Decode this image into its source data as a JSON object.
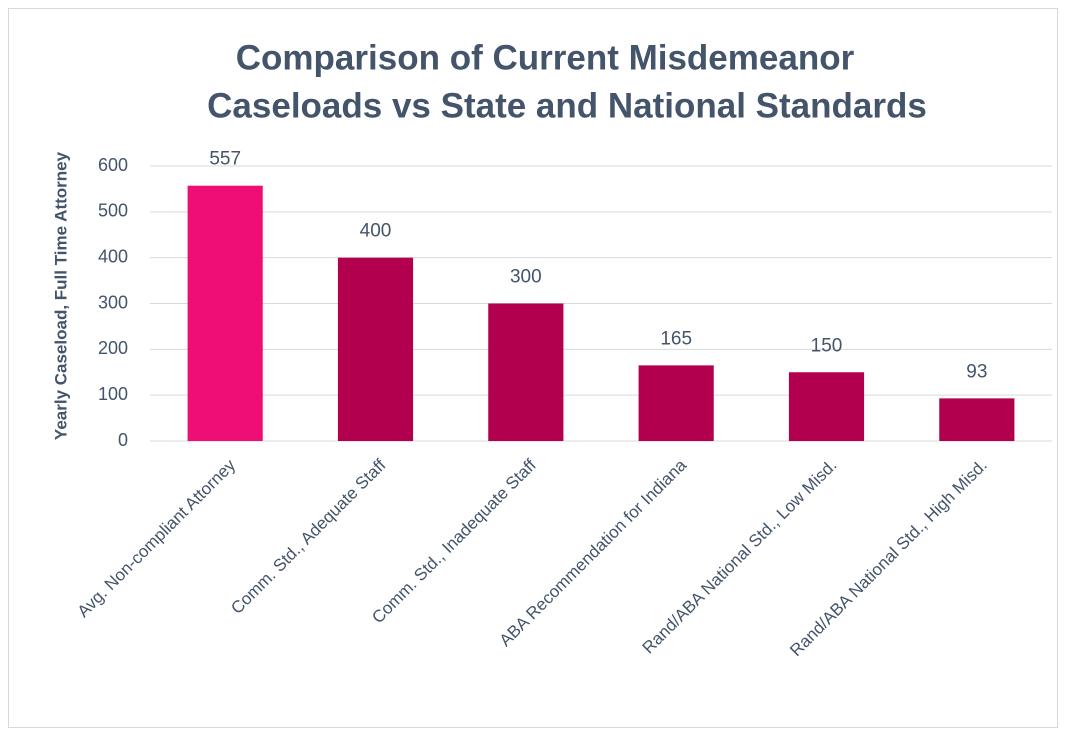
{
  "chart_data": {
    "type": "bar",
    "title": [
      "Comparison of Current Misdemeanor",
      "Caseloads vs State and National Standards"
    ],
    "y_label": "Yearly Caseload, Full Time Attorney",
    "categories": [
      "Avg. Non-compliant Attorney",
      "Comm. Std., Adequate Staff",
      "Comm. Std., Inadequate Staff",
      "ABA Recommendation for Indiana",
      "Rand/ABA National Std., Low Misd.",
      "Rand/ABA National Std., High Misd."
    ],
    "values": [
      557,
      400,
      300,
      165,
      150,
      93
    ],
    "colors": [
      "#ed0f73",
      "#b3004e",
      "#b3004e",
      "#b3004e",
      "#b3004e",
      "#b3004e"
    ],
    "ylim": [
      0,
      600
    ],
    "yticks": [
      0,
      100,
      200,
      300,
      400,
      500,
      600
    ],
    "grid": true
  }
}
